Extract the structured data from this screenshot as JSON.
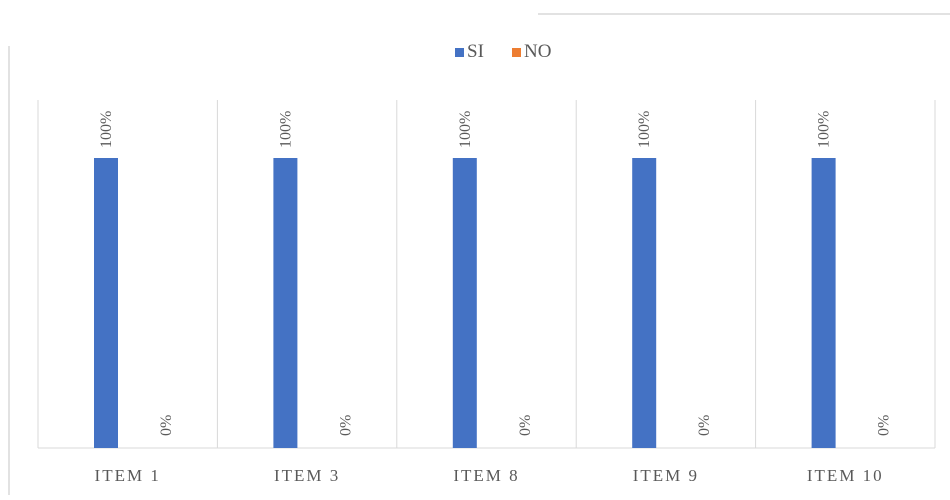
{
  "chart_data": {
    "type": "bar",
    "categories": [
      "ITEM 1",
      "ITEM 3",
      "ITEM 8",
      "ITEM 9",
      "ITEM 10"
    ],
    "series": [
      {
        "name": "SI",
        "values": [
          100,
          100,
          100,
          100,
          100
        ],
        "labels": [
          "100%",
          "100%",
          "100%",
          "100%",
          "100%"
        ],
        "color": "#4472c4"
      },
      {
        "name": "NO",
        "values": [
          0,
          0,
          0,
          0,
          0
        ],
        "labels": [
          "0%",
          "0%",
          "0%",
          "0%",
          "0%"
        ],
        "color": "#ed7d31"
      }
    ],
    "ylim": [
      0,
      100
    ],
    "unit": "%",
    "legend_position": "top-center",
    "gridlines": "vertical category separators",
    "colors": {
      "gridline": "#d9d9d9",
      "text": "#595959"
    }
  }
}
